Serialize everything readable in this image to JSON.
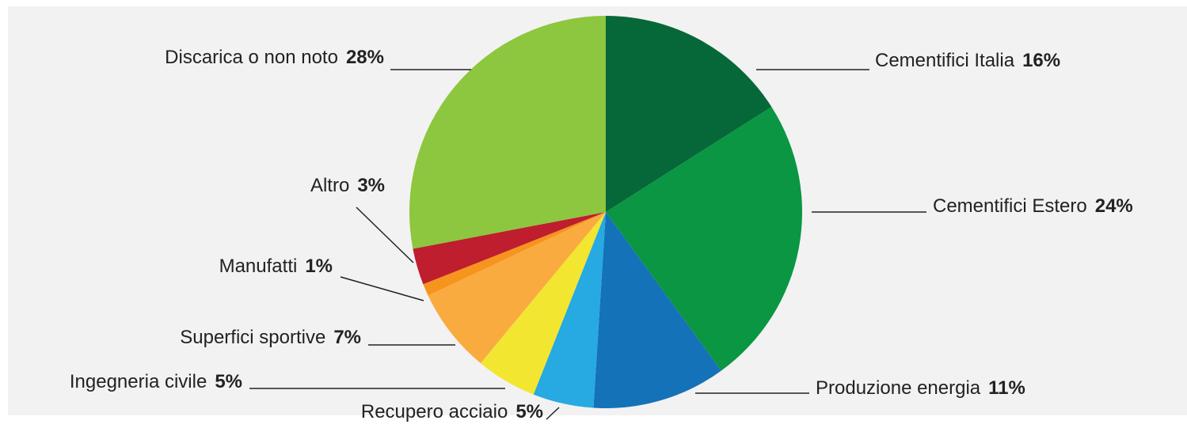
{
  "chart_data": {
    "type": "pie",
    "categories": [
      "Cementifici Italia",
      "Cementifici Estero",
      "Produzione energia",
      "Recupero acciaio",
      "Ingegneria civile",
      "Superfici sportive",
      "Manufatti",
      "Altro",
      "Discarica o non noto"
    ],
    "values": [
      16,
      24,
      11,
      5,
      5,
      7,
      1,
      3,
      28
    ],
    "value_labels": [
      "16%",
      "24%",
      "11%",
      "5%",
      "5%",
      "7%",
      "1%",
      "3%",
      "28%"
    ],
    "colors": [
      "#066838",
      "#0a9642",
      "#1472b9",
      "#27a9e1",
      "#f2e631",
      "#f9ab3f",
      "#f7941d",
      "#be1e2d",
      "#8dc63f"
    ]
  }
}
